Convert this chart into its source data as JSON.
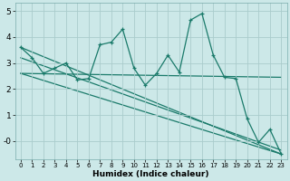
{
  "xlabel": "Humidex (Indice chaleur)",
  "bg_color": "#cce8e8",
  "grid_color": "#aacccc",
  "line_color": "#1a7a6a",
  "xlim": [
    -0.5,
    23.5
  ],
  "ylim": [
    -0.7,
    5.3
  ],
  "xticks": [
    0,
    1,
    2,
    3,
    4,
    5,
    6,
    7,
    8,
    9,
    10,
    11,
    12,
    13,
    14,
    15,
    16,
    17,
    18,
    19,
    20,
    21,
    22,
    23
  ],
  "yticks": [
    0,
    1,
    2,
    3,
    4,
    5
  ],
  "ytick_labels": [
    "-0",
    "1",
    "2",
    "3",
    "4",
    "5"
  ],
  "main_x": [
    0,
    1,
    2,
    3,
    4,
    5,
    6,
    7,
    8,
    9,
    10,
    11,
    12,
    13,
    14,
    15,
    16,
    17,
    18,
    19,
    20,
    21,
    22,
    23
  ],
  "main_y": [
    3.6,
    3.2,
    2.6,
    2.8,
    3.0,
    2.35,
    2.4,
    3.7,
    3.8,
    4.3,
    2.8,
    2.15,
    2.6,
    3.3,
    2.65,
    4.65,
    4.9,
    3.3,
    2.45,
    2.4,
    0.85,
    -0.05,
    0.45,
    -0.5
  ],
  "trend1_x": [
    0,
    23
  ],
  "trend1_y": [
    3.6,
    -0.5
  ],
  "trend2_x": [
    0,
    23
  ],
  "trend2_y": [
    3.2,
    -0.35
  ],
  "trend3_x": [
    0,
    23
  ],
  "trend3_y": [
    2.6,
    2.45
  ],
  "trend4_x": [
    0,
    23
  ],
  "trend4_y": [
    2.6,
    -0.5
  ]
}
